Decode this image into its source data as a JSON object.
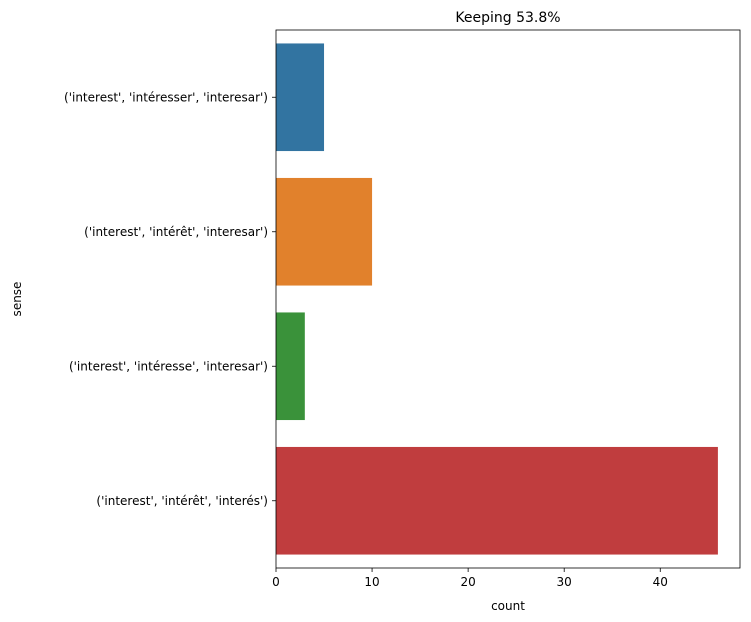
{
  "chart_data": {
    "type": "bar",
    "orientation": "horizontal",
    "title": "Keeping 53.8%",
    "xlabel": "count",
    "ylabel": "sense",
    "categories": [
      "('interest', 'intéresser', 'interesar')",
      "('interest', 'intérêt', 'interesar')",
      "('interest', 'intéresse', 'interesar')",
      "('interest', 'intérêt', 'interés')"
    ],
    "values": [
      5,
      10,
      3,
      46
    ],
    "colors": [
      "#3274a1",
      "#e1812c",
      "#3a923a",
      "#c03d3e"
    ],
    "xlim": [
      0,
      48.3
    ],
    "xticks": [
      0,
      10,
      20,
      30,
      40
    ],
    "grid": false
  }
}
